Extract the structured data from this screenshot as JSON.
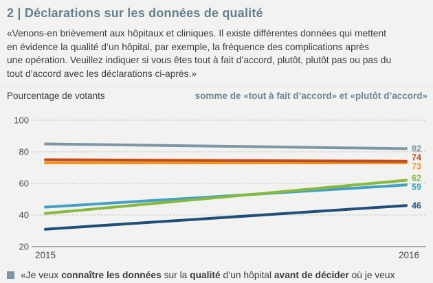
{
  "header": {
    "title": "2 | Déclarations sur les données de qualité",
    "intro_lines": [
      "«Venons-en brièvement aux hôpitaux et cliniques. Il existe différentes données qui mettent",
      "en évidence la qualité d’un hôpital, par exemple, la fréquence des complications après",
      "une opération. Veuillez indiquer si vous êtes tout à fait d’accord, plutôt, plutôt pas ou pas du",
      "tout d’accord avec les déclarations ci-après.»"
    ]
  },
  "chart_header": {
    "left_label": "Pourcentage de votants",
    "right_label": "somme de «tout à fait d’accord» et «plutôt d’accord»"
  },
  "chart_data": {
    "type": "line",
    "title": "Pourcentage de votants — somme de «tout à fait d’accord» et «plutôt d’accord»",
    "x_labels": [
      "2015",
      "2016"
    ],
    "x": [
      2015,
      2016
    ],
    "y_ticks": [
      100,
      80,
      60,
      40,
      20
    ],
    "ylim": [
      20,
      100
    ],
    "grid": "dotted-horizontal",
    "legend_position": "bottom",
    "series": [
      {
        "color": "#7d96a6",
        "values": [
          85,
          82
        ],
        "end_label": "82"
      },
      {
        "color": "#c24b1e",
        "values": [
          75,
          74
        ],
        "end_label": "74"
      },
      {
        "color": "#f0941f",
        "values": [
          73,
          73
        ],
        "end_label": "73"
      },
      {
        "color": "#86b93d",
        "values": [
          41,
          62
        ],
        "end_label": "62"
      },
      {
        "color": "#42a1c2",
        "values": [
          45,
          59
        ],
        "end_label": "59"
      },
      {
        "color": "#1f4e79",
        "values": [
          31,
          46
        ],
        "end_label": "46"
      }
    ]
  },
  "legend": {
    "marker_color": "#7d96a6",
    "segments": [
      {
        "text": "«Je veux ",
        "bold": false
      },
      {
        "text": "connaître les données",
        "bold": true
      },
      {
        "text": " sur la ",
        "bold": false
      },
      {
        "text": "qualité",
        "bold": true
      },
      {
        "text": " d’un hôpital ",
        "bold": false
      },
      {
        "text": "avant de décider",
        "bold": true
      },
      {
        "text": " où je veux",
        "bold": false
      }
    ]
  },
  "colors": {
    "background": "#f2f3f1",
    "title": "#66808f",
    "subtitle_right": "#6b8796",
    "body_text": "#3b3b3b",
    "axis_text": "#474747",
    "gridline": "#9b9b9b",
    "axis_line": "#a9a9a9"
  }
}
